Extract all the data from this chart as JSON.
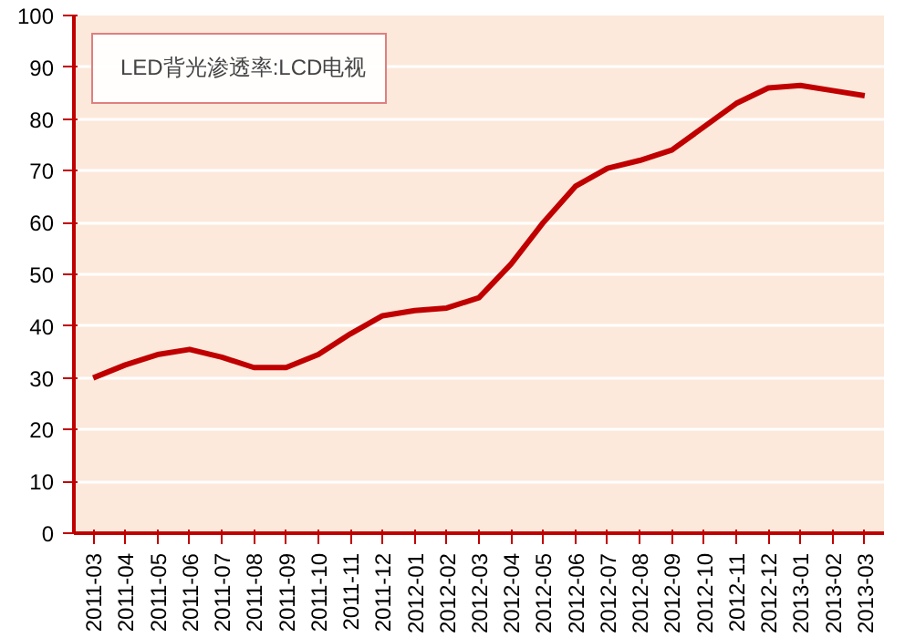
{
  "chart_data": {
    "type": "line",
    "categories": [
      "2011-03",
      "2011-04",
      "2011-05",
      "2011-06",
      "2011-07",
      "2011-08",
      "2011-09",
      "2011-10",
      "2011-11",
      "2011-12",
      "2012-01",
      "2012-02",
      "2012-03",
      "2012-04",
      "2012-05",
      "2012-06",
      "2012-07",
      "2012-08",
      "2012-09",
      "2012-10",
      "2012-11",
      "2012-12",
      "2013-01",
      "2013-02",
      "2013-03"
    ],
    "series": [
      {
        "name": "LED背光渗透率:LCD电视",
        "color": "#c00000",
        "values": [
          30,
          32.5,
          34.5,
          35.5,
          34,
          32,
          32,
          34.5,
          38.5,
          42,
          43,
          43.5,
          45.5,
          52,
          60,
          67,
          70.5,
          72,
          74,
          78.5,
          83,
          86,
          86.5,
          85.5,
          84.5
        ]
      }
    ],
    "ylim": [
      0,
      100
    ],
    "yticks": [
      0,
      10,
      20,
      30,
      40,
      50,
      60,
      70,
      80,
      90,
      100
    ],
    "grid": "y",
    "legend": "top left",
    "marker": "none",
    "line_style": "solid"
  }
}
